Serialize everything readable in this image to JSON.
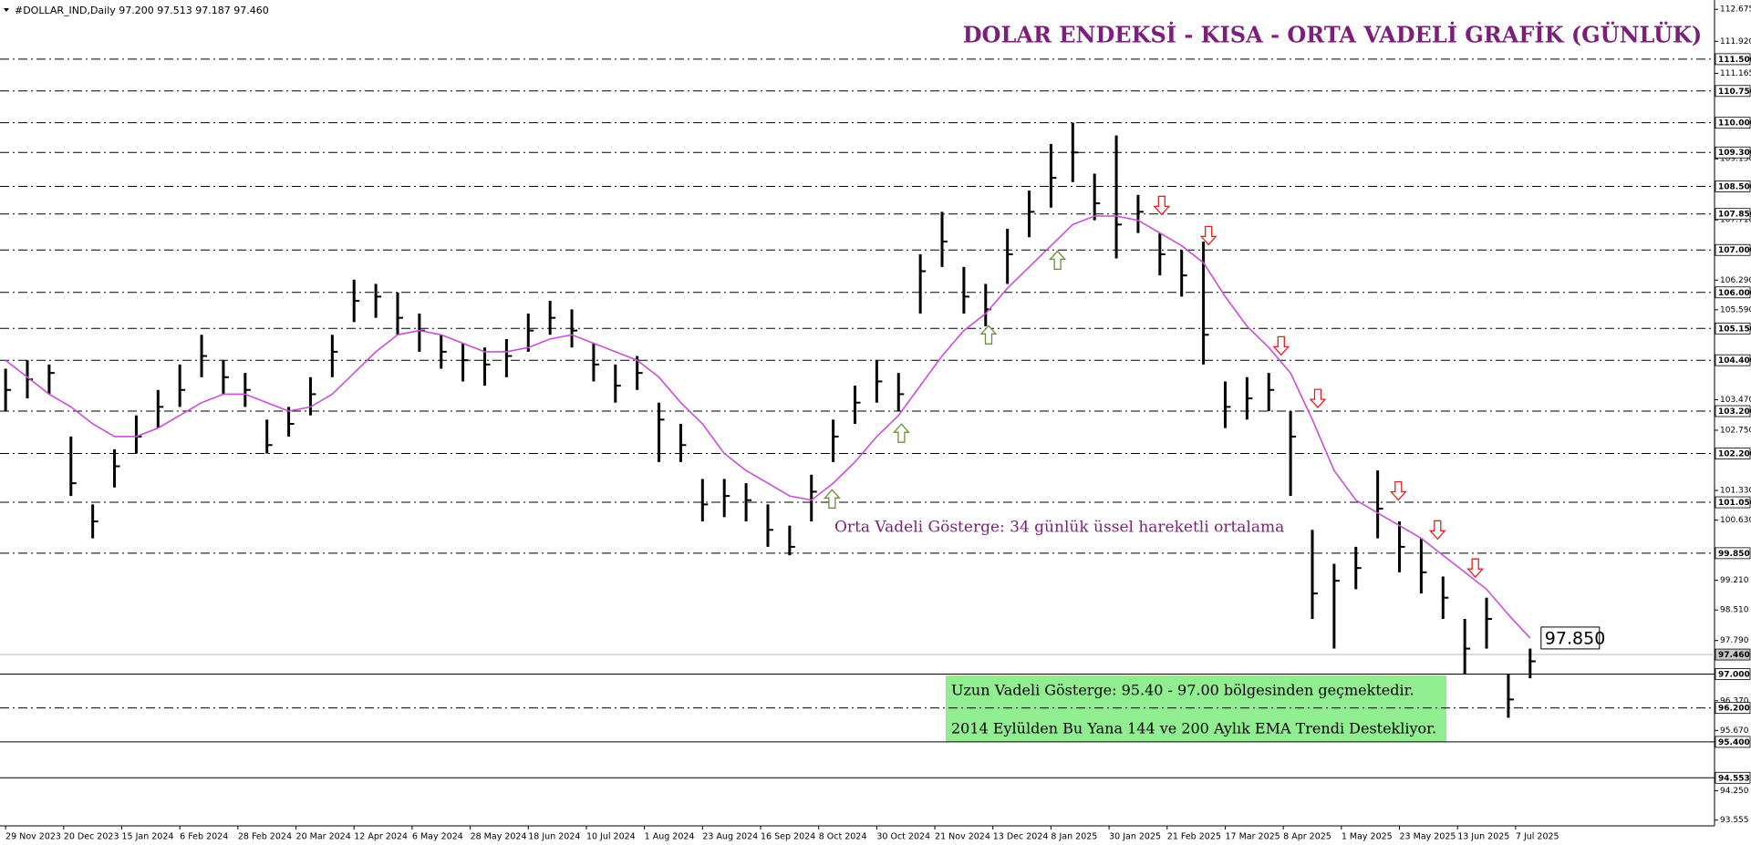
{
  "header": "#DOLLAR_IND,Daily  97.200 97.513 97.187 97.460",
  "chart_data": {
    "type": "hlc",
    "title": "DOLAR ENDEKSİ - KISA - ORTA VADELİ GRAFİK (GÜNLÜK)",
    "annotations": [
      "Orta Vadeli Gösterge: 34 günlük üssel hareketli ortalama",
      "Uzun Vadeli Gösterge: 95.40 - 97.00 bölgesinden geçmektedir.",
      "2014 Eylülden Bu Yana 144 ve 200 Aylık EMA Trendi Destekliyor."
    ],
    "x": [
      0,
      6,
      12,
      18,
      24,
      30,
      36,
      42,
      48,
      54,
      60,
      66,
      72,
      78,
      84,
      90,
      96,
      102,
      108,
      114,
      120,
      126,
      132,
      138,
      144,
      150,
      156,
      162,
      168,
      174,
      180,
      186,
      192,
      198,
      204,
      210,
      216,
      222,
      228,
      234,
      240,
      246,
      252,
      258,
      264,
      270,
      276,
      282,
      288,
      294,
      300,
      306,
      312,
      318,
      324,
      330,
      336,
      342,
      348,
      354,
      360,
      366,
      372,
      378,
      384,
      390,
      396,
      402,
      408,
      414,
      420
    ],
    "xlim": [
      -1.54,
      470.8
    ],
    "xticks": [
      {
        "value": 0,
        "label": "29 Nov 2023"
      },
      {
        "value": 16,
        "label": "20 Dec 2023"
      },
      {
        "value": 32,
        "label": "15 Jan 2024"
      },
      {
        "value": 48,
        "label": "6 Feb 2024"
      },
      {
        "value": 64,
        "label": "28 Feb 2024"
      },
      {
        "value": 80,
        "label": "20 Mar 2024"
      },
      {
        "value": 96,
        "label": "12 Apr 2024"
      },
      {
        "value": 112,
        "label": "6 May 2024"
      },
      {
        "value": 128,
        "label": "28 May 2024"
      },
      {
        "value": 144,
        "label": "18 Jun 2024"
      },
      {
        "value": 160,
        "label": "10 Jul 2024"
      },
      {
        "value": 176,
        "label": "1 Aug 2024"
      },
      {
        "value": 192,
        "label": "23 Aug 2024"
      },
      {
        "value": 208,
        "label": "16 Sep 2024"
      },
      {
        "value": 224,
        "label": "8 Oct 2024"
      },
      {
        "value": 240,
        "label": "30 Oct 2024"
      },
      {
        "value": 256,
        "label": "21 Nov 2024"
      },
      {
        "value": 272,
        "label": "13 Dec 2024"
      },
      {
        "value": 288,
        "label": "8 Jan 2025"
      },
      {
        "value": 304,
        "label": "30 Jan 2025"
      },
      {
        "value": 320,
        "label": "21 Feb 2025"
      },
      {
        "value": 336,
        "label": "17 Mar 2025"
      },
      {
        "value": 352,
        "label": "8 Apr 2025"
      },
      {
        "value": 368,
        "label": "1 May 2025"
      },
      {
        "value": 384,
        "label": "23 May 2025"
      },
      {
        "value": 400,
        "label": "13 Jun 2025"
      },
      {
        "value": 416,
        "label": "7 Jul 2025"
      }
    ],
    "ylim": [
      93.42,
      112.895
    ],
    "yticks": [
      112.675,
      {
        "value": 111.92,
        "label": "111.920"
      },
      111.165,
      {
        "value": 109.15,
        "label": "109.150"
      },
      {
        "value": 107.71,
        "label": "107.710"
      },
      {
        "value": 106.29,
        "label": "106.290"
      },
      {
        "value": 105.59,
        "label": "105.590"
      },
      {
        "value": 103.47,
        "label": "103.470"
      },
      {
        "value": 102.75,
        "label": "102.750"
      },
      {
        "value": 101.33,
        "label": "101.330"
      },
      {
        "value": 100.63,
        "label": "100.630"
      },
      {
        "value": 99.21,
        "label": "99.210"
      },
      {
        "value": 98.51,
        "label": "98.510"
      },
      {
        "value": 97.79,
        "label": "97.790"
      },
      {
        "value": 96.37,
        "label": "96.370"
      },
      {
        "value": 95.67,
        "label": "95.670"
      },
      {
        "value": 94.25,
        "label": "94.250"
      },
      93.555
    ],
    "series": [
      {
        "color": "#000000",
        "high": [
          104.2,
          104.4,
          104.3,
          102.6,
          101.0,
          102.3,
          103.1,
          103.7,
          104.3,
          105.0,
          104.4,
          104.1,
          103.0,
          103.3,
          104.0,
          105.0,
          106.3,
          106.2,
          106.0,
          105.5,
          105.0,
          104.8,
          104.7,
          104.9,
          105.5,
          105.8,
          105.6,
          104.8,
          104.3,
          104.5,
          103.4,
          102.9,
          101.6,
          101.6,
          101.5,
          101.0,
          100.5,
          101.7,
          103.0,
          103.8,
          104.4,
          104.1,
          106.9,
          107.9,
          106.6,
          106.2,
          107.5,
          108.4,
          109.5,
          110.0,
          108.8,
          109.7,
          108.3,
          107.4,
          107.0,
          107.2,
          103.9,
          104.0,
          104.1,
          103.2,
          100.4,
          99.6,
          100.0,
          101.8,
          100.6,
          100.2,
          99.3,
          98.3,
          98.8,
          97.0,
          97.6
        ],
        "low": [
          103.2,
          103.5,
          103.6,
          101.2,
          100.2,
          101.4,
          102.2,
          102.8,
          103.3,
          104.0,
          103.6,
          103.3,
          102.2,
          102.6,
          103.1,
          104.0,
          105.3,
          105.4,
          105.0,
          104.6,
          104.2,
          103.9,
          103.8,
          104.0,
          104.6,
          105.0,
          104.7,
          103.9,
          103.4,
          103.7,
          102.0,
          102.0,
          100.6,
          100.7,
          100.6,
          100.0,
          99.8,
          100.6,
          102.0,
          102.9,
          103.4,
          103.2,
          105.5,
          106.6,
          105.5,
          105.2,
          106.2,
          107.3,
          108.0,
          108.6,
          107.7,
          106.8,
          107.4,
          106.4,
          105.9,
          104.3,
          102.8,
          103.0,
          103.2,
          101.2,
          98.3,
          97.6,
          99.0,
          100.2,
          99.4,
          98.9,
          98.3,
          97.0,
          97.6,
          95.97,
          96.9
        ],
        "close": [
          103.7,
          103.95,
          104.1,
          101.5,
          100.6,
          101.9,
          102.6,
          103.3,
          103.7,
          104.5,
          104.0,
          103.7,
          102.4,
          102.9,
          103.6,
          104.6,
          105.8,
          105.9,
          105.4,
          105.1,
          104.6,
          104.4,
          104.3,
          104.5,
          105.1,
          105.4,
          105.1,
          104.3,
          103.8,
          104.1,
          103.0,
          102.4,
          101.0,
          101.2,
          101.1,
          100.4,
          100.0,
          101.3,
          102.6,
          103.4,
          103.9,
          103.6,
          106.5,
          107.2,
          105.9,
          105.6,
          106.9,
          107.9,
          108.7,
          109.3,
          108.1,
          107.6,
          107.9,
          106.9,
          106.4,
          105.0,
          103.3,
          103.5,
          103.7,
          102.6,
          98.9,
          99.2,
          99.5,
          100.9,
          100.0,
          99.4,
          98.8,
          97.6,
          98.3,
          96.4,
          97.3
        ]
      },
      {
        "color": "#c94fd6",
        "values": [
          104.4,
          104.0,
          103.6,
          103.3,
          102.9,
          102.6,
          102.6,
          102.8,
          103.1,
          103.4,
          103.6,
          103.6,
          103.4,
          103.2,
          103.3,
          103.6,
          104.1,
          104.6,
          105.0,
          105.1,
          105.0,
          104.8,
          104.6,
          104.6,
          104.7,
          104.9,
          105.0,
          104.8,
          104.6,
          104.4,
          104.0,
          103.4,
          102.9,
          102.2,
          101.8,
          101.5,
          101.2,
          101.1,
          101.5,
          102.0,
          102.6,
          103.1,
          103.8,
          104.5,
          105.1,
          105.5,
          106.1,
          106.6,
          107.1,
          107.6,
          107.8,
          107.8,
          107.7,
          107.4,
          107.1,
          106.7,
          105.9,
          105.2,
          104.7,
          104.1,
          103.0,
          101.8,
          101.1,
          100.8,
          100.5,
          100.2,
          99.8,
          99.4,
          99.0,
          98.4,
          97.85
        ]
      }
    ],
    "ema_label": {
      "value": 97.85,
      "label": "97.850"
    },
    "levels": [
      {
        "value": 111.5,
        "label": "111.500",
        "style": "dashdot"
      },
      {
        "value": 110.75,
        "label": "110.750",
        "style": "dashdot"
      },
      {
        "value": 110,
        "label": "110.000",
        "style": "dashdot"
      },
      {
        "value": 109.3,
        "label": "109.300",
        "style": "dashdot"
      },
      {
        "value": 108.5,
        "label": "108.500",
        "style": "dashdot"
      },
      {
        "value": 107.85,
        "label": "107.850",
        "style": "dashdot"
      },
      {
        "value": 107,
        "label": "107.000",
        "style": "dashdot"
      },
      {
        "value": 106,
        "label": "106.000",
        "style": "dashdot"
      },
      {
        "value": 105.15,
        "label": "105.150",
        "style": "dashdot"
      },
      {
        "value": 104.4,
        "label": "104.400",
        "style": "dashdot"
      },
      {
        "value": 103.2,
        "label": "103.200",
        "style": "dashdot"
      },
      {
        "value": 102.2,
        "label": "102.200",
        "style": "dashdot"
      },
      {
        "value": 101.05,
        "label": "101.050",
        "style": "dashdot"
      },
      {
        "value": 99.85,
        "label": "99.850",
        "style": "dashdot"
      },
      {
        "value": 97.46,
        "label": "97.460",
        "style": "last"
      },
      {
        "value": 97,
        "label": "97.000",
        "style": "solid"
      },
      {
        "value": 96.2,
        "label": "96.200",
        "style": "dashdot"
      },
      {
        "value": 95.4,
        "label": "95.400",
        "style": "solid"
      },
      {
        "value": 94.553,
        "label": "94.553",
        "style": "solid"
      }
    ],
    "signals": [
      {
        "x": 227.7,
        "y": 101.13,
        "direction": "up"
      },
      {
        "x": 246.8,
        "y": 102.68,
        "direction": "up"
      },
      {
        "x": 270.8,
        "y": 105.0,
        "direction": "up"
      },
      {
        "x": 289.8,
        "y": 106.76,
        "direction": "up"
      },
      {
        "x": 318.5,
        "y": 108.05,
        "direction": "down"
      },
      {
        "x": 331.4,
        "y": 107.34,
        "direction": "down"
      },
      {
        "x": 351.4,
        "y": 104.74,
        "direction": "down"
      },
      {
        "x": 361.5,
        "y": 103.5,
        "direction": "down"
      },
      {
        "x": 383.7,
        "y": 101.32,
        "direction": "down"
      },
      {
        "x": 394.5,
        "y": 100.4,
        "direction": "down"
      },
      {
        "x": 404.9,
        "y": 99.5,
        "direction": "down"
      }
    ]
  }
}
